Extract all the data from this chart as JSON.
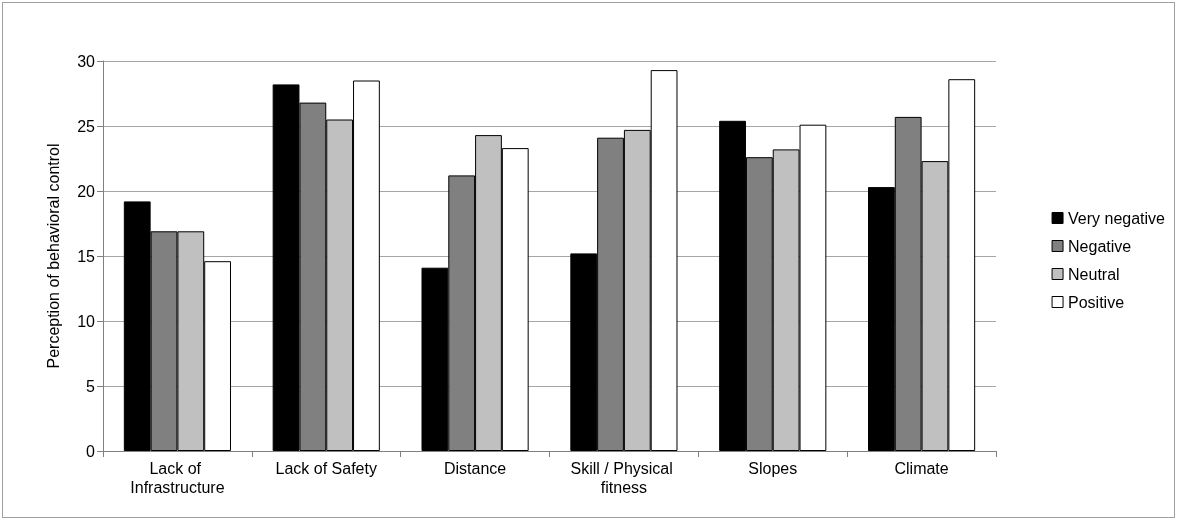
{
  "chart_data": {
    "type": "bar",
    "ylabel": "Perception of behavioral control",
    "categories": [
      "Lack of Infrastructure",
      "Lack of Safety",
      "Distance",
      "Skill / Physical fitness",
      "Slopes",
      "Climate"
    ],
    "series": [
      {
        "name": "Very negative",
        "color": "#000000",
        "values": [
          19.2,
          28.2,
          14.1,
          15.2,
          25.4,
          20.3
        ]
      },
      {
        "name": "Negative",
        "color": "#808080",
        "values": [
          16.9,
          26.8,
          21.2,
          24.1,
          22.6,
          25.7
        ]
      },
      {
        "name": "Neutral",
        "color": "#c0c0c0",
        "values": [
          16.9,
          25.5,
          24.3,
          24.7,
          23.2,
          22.3
        ]
      },
      {
        "name": "Positive",
        "color": "#ffffff",
        "values": [
          14.6,
          28.5,
          23.3,
          29.3,
          25.1,
          28.6
        ]
      }
    ],
    "ylim": [
      0,
      30
    ],
    "yticks": [
      0,
      5,
      10,
      15,
      20,
      25,
      30
    ],
    "grid": "y",
    "legend": "right"
  }
}
